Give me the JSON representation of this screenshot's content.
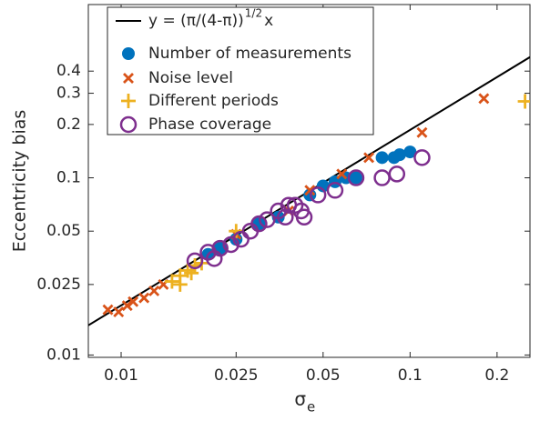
{
  "chart_data": {
    "type": "scatter",
    "xlabel": "σ",
    "xlabel_sub": "e",
    "ylabel": "Eccentricity bias",
    "xscale": "log",
    "yscale": "log",
    "xlim": [
      0.0077,
      0.26
    ],
    "ylim": [
      0.0097,
      0.95
    ],
    "xticks": [
      0.01,
      0.025,
      0.05,
      0.1,
      0.2
    ],
    "yticks": [
      0.01,
      0.025,
      0.05,
      0.1,
      0.2,
      0.3,
      0.4
    ],
    "legend": "upper left",
    "series": [
      {
        "name": "y = (π/(4-π))",
        "name_sup": "1/2",
        "name_suffix": "x",
        "marker": "line",
        "color": "#000000",
        "x": [
          0.0077,
          0.26
        ],
        "values": [
          0.0147,
          0.48
        ]
      },
      {
        "name": "Number of measurements",
        "marker": "filled-circle",
        "color": "#0072BD",
        "x": [
          0.08,
          0.088,
          0.092,
          0.1,
          0.065,
          0.06,
          0.055,
          0.05,
          0.045,
          0.035,
          0.03,
          0.025,
          0.022,
          0.02
        ],
        "values": [
          0.13,
          0.13,
          0.135,
          0.14,
          0.1,
          0.1,
          0.095,
          0.09,
          0.08,
          0.06,
          0.055,
          0.045,
          0.04,
          0.037
        ]
      },
      {
        "name": "Noise level",
        "marker": "cross",
        "color": "#D95319",
        "x": [
          0.18,
          0.11,
          0.072,
          0.058,
          0.045,
          0.009,
          0.0098,
          0.0105,
          0.011,
          0.012,
          0.013,
          0.014,
          0.025,
          0.038
        ],
        "values": [
          0.28,
          0.18,
          0.13,
          0.105,
          0.085,
          0.018,
          0.0175,
          0.019,
          0.02,
          0.021,
          0.023,
          0.025,
          0.048,
          0.065
        ]
      },
      {
        "name": "Different periods",
        "marker": "plus",
        "color": "#EDB120",
        "x": [
          0.25,
          0.015,
          0.016,
          0.017,
          0.018,
          0.016,
          0.019,
          0.025,
          0.0175
        ],
        "values": [
          0.27,
          0.026,
          0.028,
          0.03,
          0.032,
          0.025,
          0.033,
          0.05,
          0.029
        ]
      },
      {
        "name": "Phase coverage",
        "marker": "open-circle",
        "color": "#7E2F8E",
        "x": [
          0.11,
          0.09,
          0.08,
          0.065,
          0.055,
          0.048,
          0.042,
          0.04,
          0.037,
          0.035,
          0.032,
          0.03,
          0.028,
          0.026,
          0.024,
          0.022,
          0.021,
          0.02,
          0.018,
          0.043,
          0.038
        ],
        "values": [
          0.13,
          0.105,
          0.1,
          0.1,
          0.085,
          0.08,
          0.065,
          0.07,
          0.06,
          0.065,
          0.058,
          0.055,
          0.05,
          0.045,
          0.042,
          0.04,
          0.035,
          0.038,
          0.034,
          0.06,
          0.07
        ]
      }
    ]
  }
}
